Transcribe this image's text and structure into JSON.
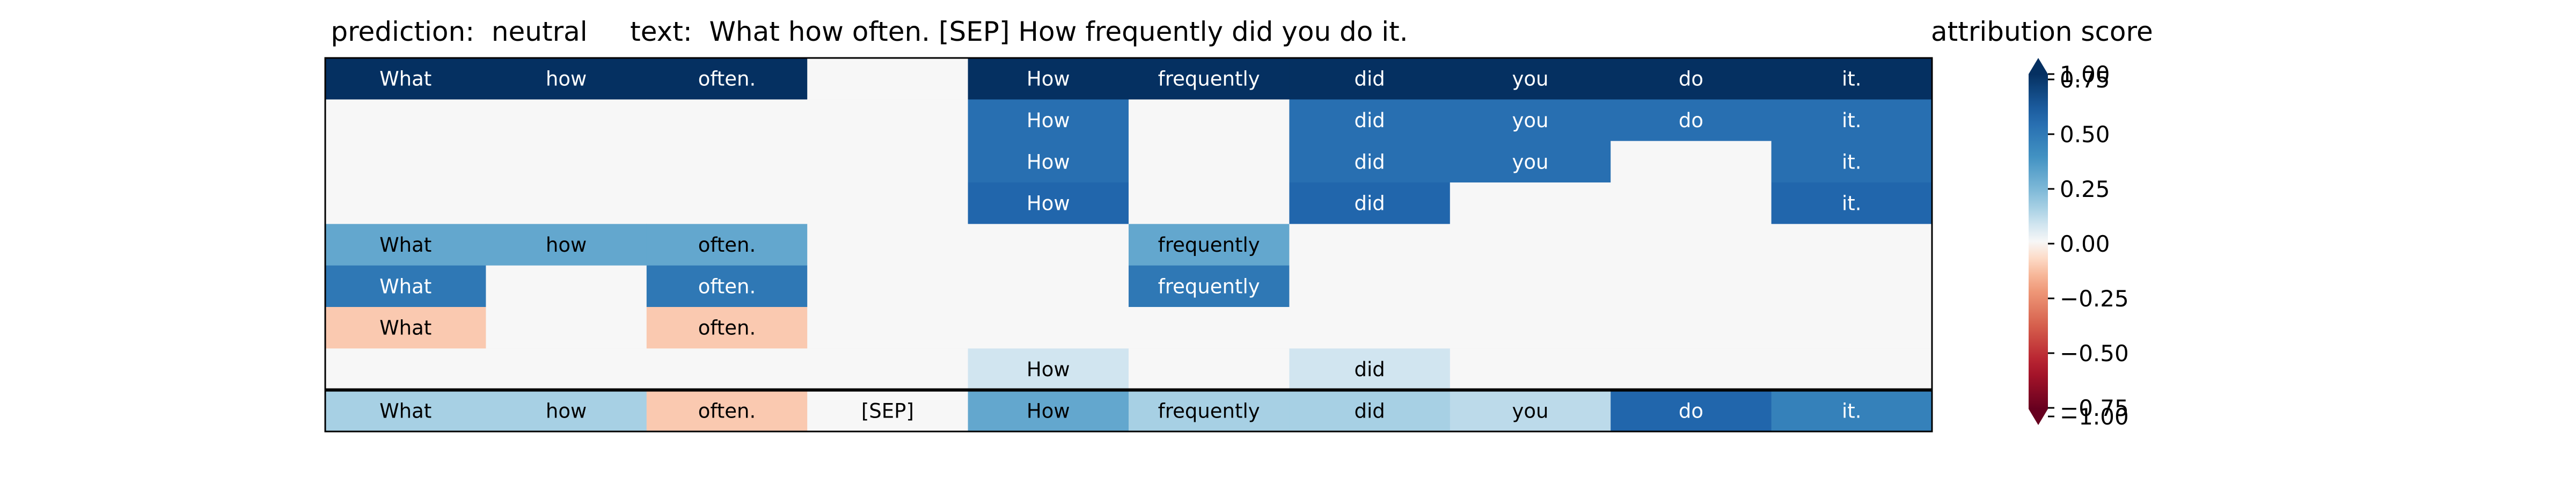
{
  "title": "prediction:  neutral     text:  What how often. [SEP] How frequently did you do it.",
  "colorbar": {
    "label": "attribution score",
    "range": [
      -1.0,
      1.0
    ],
    "tick_labels": [
      "1.00",
      "0.75",
      "0.50",
      "0.25",
      "0.00",
      "−0.25",
      "−0.50",
      "−0.75",
      "−1.00"
    ],
    "tick_values": [
      1.0,
      0.75,
      0.5,
      0.25,
      0.0,
      -0.25,
      -0.5,
      -0.75,
      -1.0
    ],
    "colormap": "RdBu",
    "extend": "both"
  },
  "chart_data": {
    "type": "heatmap",
    "columns": [
      "What",
      "how",
      "often.",
      "[SEP]",
      "How",
      "frequently",
      "did",
      "you",
      "do",
      "it."
    ],
    "rows": [
      {
        "labels": [
          "What",
          "how",
          "often.",
          "",
          "How",
          "frequently",
          "did",
          "you",
          "do",
          "it."
        ],
        "values": [
          1.0,
          1.0,
          1.0,
          0,
          1.0,
          1.0,
          1.0,
          1.0,
          1.0,
          1.0
        ]
      },
      {
        "labels": [
          "",
          "",
          "",
          "",
          "How",
          "",
          "did",
          "you",
          "do",
          "it."
        ],
        "values": [
          0,
          0,
          0,
          0,
          0.7,
          0,
          0.7,
          0.7,
          0.7,
          0.7
        ]
      },
      {
        "labels": [
          "",
          "",
          "",
          "",
          "How",
          "",
          "did",
          "you",
          "",
          "it."
        ],
        "values": [
          0,
          0,
          0,
          0,
          0.7,
          0,
          0.7,
          0.7,
          0,
          0.7
        ]
      },
      {
        "labels": [
          "",
          "",
          "",
          "",
          "How",
          "",
          "did",
          "",
          "",
          "it."
        ],
        "values": [
          0,
          0,
          0,
          0,
          0.75,
          0,
          0.75,
          0,
          0,
          0.75
        ]
      },
      {
        "labels": [
          "What",
          "how",
          "often.",
          "",
          "",
          "frequently",
          "",
          "",
          "",
          ""
        ],
        "values": [
          0.4,
          0.4,
          0.4,
          0,
          0,
          0.4,
          0,
          0,
          0,
          0
        ]
      },
      {
        "labels": [
          "What",
          "",
          "often.",
          "",
          "",
          "frequently",
          "",
          "",
          "",
          ""
        ],
        "values": [
          0.65,
          0,
          0.65,
          0,
          0,
          0.65,
          0,
          0,
          0,
          0
        ]
      },
      {
        "labels": [
          "What",
          "",
          "often.",
          "",
          "",
          "",
          "",
          "",
          "",
          ""
        ],
        "values": [
          -0.15,
          0,
          -0.15,
          0,
          0,
          0,
          0,
          0,
          0,
          0
        ]
      },
      {
        "labels": [
          "",
          "",
          "",
          "",
          "How",
          "",
          "did",
          "",
          "",
          ""
        ],
        "values": [
          0,
          0,
          0,
          0,
          0.1,
          0,
          0.1,
          0,
          0,
          0
        ]
      },
      {
        "labels": [
          "What",
          "how",
          "often.",
          "[SEP]",
          "How",
          "frequently",
          "did",
          "you",
          "do",
          "it."
        ],
        "values": [
          0.2,
          0.2,
          -0.15,
          0.0,
          0.4,
          0.2,
          0.2,
          0.15,
          0.75,
          0.6
        ]
      }
    ],
    "separator_after_row": 8
  }
}
